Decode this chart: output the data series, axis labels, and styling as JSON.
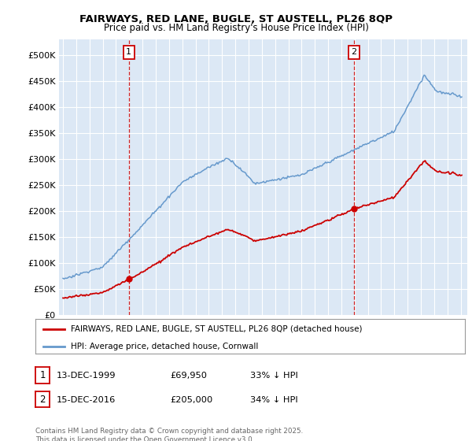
{
  "title_line1": "FAIRWAYS, RED LANE, BUGLE, ST AUSTELL, PL26 8QP",
  "title_line2": "Price paid vs. HM Land Registry's House Price Index (HPI)",
  "ylabel_ticks": [
    "£0",
    "£50K",
    "£100K",
    "£150K",
    "£200K",
    "£250K",
    "£300K",
    "£350K",
    "£400K",
    "£450K",
    "£500K"
  ],
  "ytick_vals": [
    0,
    50000,
    100000,
    150000,
    200000,
    250000,
    300000,
    350000,
    400000,
    450000,
    500000
  ],
  "xlim": [
    1994.7,
    2025.5
  ],
  "ylim": [
    0,
    530000
  ],
  "sale1_x": 1999.96,
  "sale1_y": 69950,
  "sale2_x": 2016.96,
  "sale2_y": 205000,
  "vline1_x": 1999.96,
  "vline2_x": 2016.96,
  "red_color": "#cc0000",
  "blue_color": "#6699cc",
  "plot_bg_color": "#dce8f5",
  "vline_color": "#cc0000",
  "legend_label_red": "FAIRWAYS, RED LANE, BUGLE, ST AUSTELL, PL26 8QP (detached house)",
  "legend_label_blue": "HPI: Average price, detached house, Cornwall",
  "table_row1": [
    "1",
    "13-DEC-1999",
    "£69,950",
    "33% ↓ HPI"
  ],
  "table_row2": [
    "2",
    "15-DEC-2016",
    "£205,000",
    "34% ↓ HPI"
  ],
  "footnote": "Contains HM Land Registry data © Crown copyright and database right 2025.\nThis data is licensed under the Open Government Licence v3.0.",
  "background_color": "#ffffff"
}
